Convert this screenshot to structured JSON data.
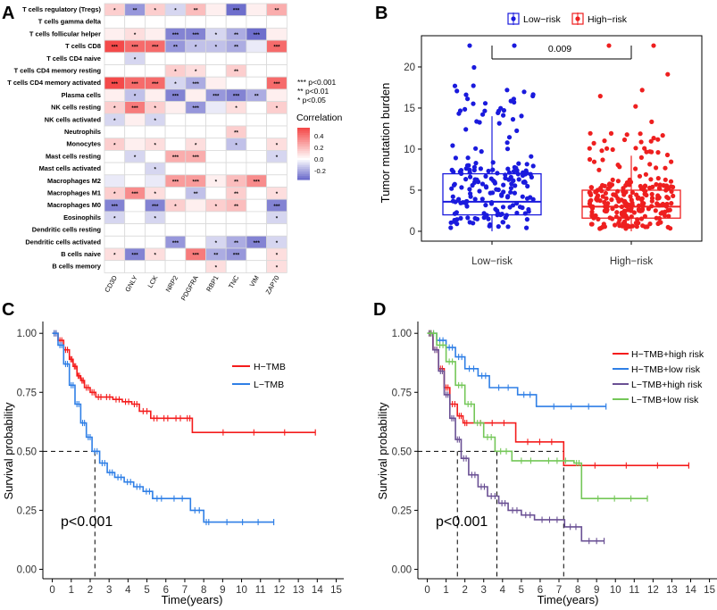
{
  "panel_labels": [
    "A",
    "B",
    "C",
    "D"
  ],
  "colors": {
    "pos": "#f44a4a",
    "neg": "#6e6ecc",
    "lowrisk": "#1a1add",
    "highrisk": "#ee1f1f",
    "htmb": "#f41c1c",
    "ltmb": "#2f7fe6",
    "htmb_high": "#f41c1c",
    "htmb_low": "#2f7fe6",
    "ltmb_high": "#6a5094",
    "ltmb_low": "#74c758"
  },
  "chart_data": [
    {
      "id": "A",
      "type": "heatmap",
      "title": "",
      "rows": [
        "T cells regulatory (Tregs)",
        "T cells gamma delta",
        "T cells follicular helper",
        "T cells CD8",
        "T cells CD4 naive",
        "T cells CD4 memory resting",
        "T cells CD4 memory activated",
        "Plasma cells",
        "NK cells resting",
        "NK cells activated",
        "Neutrophils",
        "Monocytes",
        "Mast cells resting",
        "Mast cells activated",
        "Macrophages M2",
        "Macrophages M1",
        "Macrophages M0",
        "Eosinophils",
        "Dendritic cells resting",
        "Dendritic cells activated",
        "B cells naive",
        "B cells memory"
      ],
      "columns": [
        "CD3D",
        "GNLY",
        "LCK",
        "NRP2",
        "PDGFRA",
        "RBP1",
        "TNC",
        "VIM",
        "ZAP70"
      ],
      "values": [
        [
          0.15,
          -0.25,
          0.15,
          -0.1,
          0.2,
          0.05,
          -0.35,
          0.05,
          0.25
        ],
        [
          0.0,
          0.0,
          0.0,
          0.0,
          0.0,
          0.0,
          0.0,
          0.0,
          0.0
        ],
        [
          0.05,
          0.1,
          0.05,
          -0.3,
          -0.3,
          -0.1,
          -0.2,
          -0.35,
          0.05
        ],
        [
          0.55,
          0.45,
          0.45,
          -0.25,
          -0.15,
          -0.15,
          -0.2,
          -0.05,
          0.45
        ],
        [
          0.0,
          -0.1,
          0.0,
          0.0,
          0.0,
          0.0,
          0.0,
          0.0,
          0.0
        ],
        [
          0.0,
          0.0,
          0.0,
          0.15,
          0.1,
          0.0,
          0.15,
          0.0,
          0.0
        ],
        [
          0.55,
          0.45,
          0.45,
          -0.1,
          -0.2,
          0.05,
          0.0,
          0.0,
          0.45
        ],
        [
          0.05,
          -0.15,
          0.05,
          -0.3,
          0.05,
          -0.25,
          -0.3,
          -0.2,
          0.05
        ],
        [
          0.15,
          0.4,
          0.15,
          0.05,
          -0.25,
          -0.05,
          0.1,
          0.0,
          0.15
        ],
        [
          -0.1,
          0.05,
          -0.1,
          0.0,
          0.0,
          0.0,
          0.0,
          0.0,
          0.0
        ],
        [
          0.0,
          0.0,
          0.0,
          0.0,
          0.0,
          0.0,
          0.15,
          0.0,
          0.0
        ],
        [
          0.15,
          0.05,
          0.1,
          0.0,
          0.1,
          0.0,
          -0.15,
          0.0,
          0.1
        ],
        [
          0.0,
          -0.1,
          0.0,
          0.25,
          0.25,
          0.0,
          0.0,
          0.0,
          -0.1
        ],
        [
          0.0,
          0.0,
          -0.1,
          0.0,
          0.0,
          0.0,
          0.0,
          0.0,
          0.0
        ],
        [
          -0.05,
          0.0,
          -0.05,
          0.3,
          0.3,
          0.05,
          0.2,
          0.35,
          0.0
        ],
        [
          0.15,
          0.35,
          0.1,
          0.0,
          -0.15,
          0.0,
          0.15,
          0.0,
          0.1
        ],
        [
          -0.3,
          0.0,
          -0.3,
          0.15,
          0.05,
          0.15,
          0.2,
          0.0,
          -0.3
        ],
        [
          -0.1,
          0.0,
          -0.1,
          0.0,
          0.0,
          0.0,
          0.0,
          0.0,
          -0.1
        ],
        [
          0.0,
          0.0,
          0.0,
          0.0,
          0.0,
          0.0,
          0.0,
          0.0,
          0.0
        ],
        [
          0.0,
          0.0,
          0.0,
          -0.25,
          0.0,
          -0.1,
          -0.2,
          -0.3,
          -0.1
        ],
        [
          0.1,
          -0.3,
          0.1,
          0.0,
          0.4,
          -0.2,
          -0.25,
          0.0,
          0.1
        ],
        [
          0.0,
          0.0,
          0.0,
          0.0,
          0.0,
          0.1,
          0.0,
          0.0,
          0.1
        ]
      ],
      "stars": [
        [
          "*",
          "**",
          "*",
          "*",
          "**",
          "",
          "***",
          "",
          "**"
        ],
        [
          "",
          "",
          "",
          "",
          "",
          "",
          "",
          "",
          ""
        ],
        [
          "",
          "*",
          "",
          "***",
          "***",
          "*",
          "**",
          "***",
          ""
        ],
        [
          "***",
          "***",
          "***",
          "**",
          "*",
          "*",
          "**",
          "",
          "***"
        ],
        [
          "",
          "*",
          "",
          "",
          "",
          "",
          "",
          "",
          ""
        ],
        [
          "",
          "",
          "",
          "*",
          "*",
          "",
          "**",
          "",
          ""
        ],
        [
          "***",
          "***",
          "***",
          "*",
          "***",
          "",
          "",
          "",
          "***"
        ],
        [
          "",
          "*",
          "",
          "***",
          "",
          "***",
          "***",
          "**",
          ""
        ],
        [
          "*",
          "***",
          "*",
          "",
          "***",
          "",
          "*",
          "",
          "*"
        ],
        [
          "*",
          "",
          "*",
          "",
          "",
          "",
          "",
          "",
          ""
        ],
        [
          "",
          "",
          "",
          "",
          "",
          "",
          "**",
          "",
          ""
        ],
        [
          "*",
          "",
          "*",
          "",
          "*",
          "",
          "*",
          "",
          "*"
        ],
        [
          "",
          "*",
          "",
          "***",
          "***",
          "",
          "",
          "",
          "*"
        ],
        [
          "",
          "",
          "*",
          "",
          "",
          "",
          "",
          "",
          ""
        ],
        [
          "",
          "",
          "",
          "***",
          "***",
          "*",
          "**",
          "***",
          ""
        ],
        [
          "*",
          "***",
          "*",
          "",
          "**",
          "",
          "**",
          "",
          "*"
        ],
        [
          "***",
          "",
          "***",
          "*",
          "",
          "*",
          "**",
          "",
          "***"
        ],
        [
          "*",
          "",
          "*",
          "",
          "",
          "",
          "",
          "",
          "*"
        ],
        [
          "",
          "",
          "",
          "",
          "",
          "",
          "",
          "",
          ""
        ],
        [
          "",
          "",
          "",
          "***",
          "",
          "*",
          "**",
          "***",
          "*"
        ],
        [
          "*",
          "***",
          "*",
          "",
          "***",
          "**",
          "***",
          "",
          "*"
        ],
        [
          "",
          "",
          "",
          "",
          "",
          "*",
          "",
          "",
          "*"
        ]
      ],
      "significance_legend": [
        "*** p<0.001",
        "** p<0.01",
        "* p<0.05"
      ],
      "colorbar": {
        "title": "Correlation",
        "ticks": [
          "0.4",
          "0.2",
          "0.0",
          "-0.2"
        ],
        "range": [
          -0.35,
          0.55
        ]
      }
    },
    {
      "id": "B",
      "type": "box+scatter",
      "categories": [
        "Low−risk",
        "High−risk"
      ],
      "legend": [
        "Low−risk",
        "High−risk"
      ],
      "ylabel": "Tumor mutation burden",
      "xlabel": "",
      "ylim": [
        0,
        23
      ],
      "yticks": [
        0,
        5,
        10,
        15,
        20
      ],
      "pvalue": "0.009",
      "boxes": [
        {
          "name": "Low−risk",
          "min": 0,
          "q1": 2.0,
          "median": 3.6,
          "q3": 7.0,
          "whisker_high": 14.0,
          "max_outlier": 22.6,
          "n_points": 190
        },
        {
          "name": "High−risk",
          "min": 0,
          "q1": 1.6,
          "median": 3.0,
          "q3": 5.0,
          "whisker_high": 9.2,
          "max_outlier": 22.6,
          "n_points": 250
        }
      ]
    },
    {
      "id": "C",
      "type": "line",
      "subtype": "kaplan-meier",
      "xlabel": "Time(years)",
      "ylabel": "Survival probability",
      "xlim": [
        0,
        15
      ],
      "ylim": [
        0,
        1
      ],
      "xticks": [
        "0",
        "1",
        "2",
        "3",
        "4",
        "5",
        "6",
        "7",
        "8",
        "9",
        "10",
        "11",
        "12",
        "13",
        "14",
        "15"
      ],
      "yticks": [
        "0.00",
        "0.25",
        "0.50",
        "0.75",
        "1.00"
      ],
      "pvalue": "p<0.001",
      "median_lines": [
        2.25
      ],
      "series": [
        {
          "name": "H−TMB",
          "x": [
            0,
            0.3,
            0.6,
            0.9,
            1.1,
            1.3,
            1.5,
            1.7,
            2.0,
            2.3,
            2.7,
            3.2,
            3.7,
            4.2,
            4.6,
            5.2,
            5.7,
            6.3,
            7.0,
            7.4,
            13.9
          ],
          "y": [
            1.0,
            0.97,
            0.93,
            0.89,
            0.86,
            0.82,
            0.8,
            0.77,
            0.75,
            0.73,
            0.73,
            0.72,
            0.71,
            0.7,
            0.67,
            0.64,
            0.64,
            0.64,
            0.64,
            0.58,
            0.58
          ]
        },
        {
          "name": "L−TMB",
          "x": [
            0,
            0.3,
            0.6,
            0.9,
            1.2,
            1.5,
            1.8,
            2.1,
            2.5,
            2.9,
            3.3,
            3.8,
            4.3,
            4.8,
            5.3,
            6.0,
            7.3,
            8.0,
            8.4,
            11.7
          ],
          "y": [
            1.0,
            0.95,
            0.87,
            0.78,
            0.7,
            0.62,
            0.56,
            0.5,
            0.45,
            0.41,
            0.39,
            0.37,
            0.35,
            0.33,
            0.3,
            0.3,
            0.25,
            0.2,
            0.2,
            0.2
          ]
        }
      ]
    },
    {
      "id": "D",
      "type": "line",
      "subtype": "kaplan-meier",
      "xlabel": "Time(years)",
      "ylabel": "Survival probability",
      "xlim": [
        0,
        15
      ],
      "ylim": [
        0,
        1
      ],
      "xticks": [
        "0",
        "1",
        "2",
        "3",
        "4",
        "5",
        "6",
        "7",
        "8",
        "9",
        "10",
        "11",
        "12",
        "13",
        "14",
        "15"
      ],
      "yticks": [
        "0.00",
        "0.25",
        "0.50",
        "0.75",
        "1.00"
      ],
      "pvalue": "p<0.001",
      "median_lines": [
        1.6,
        3.7,
        7.25
      ],
      "series": [
        {
          "name": "H−TMB+high risk",
          "x": [
            0,
            0.3,
            0.6,
            0.9,
            1.2,
            1.6,
            1.9,
            2.2,
            4.7,
            7.25,
            13.9
          ],
          "y": [
            1.0,
            0.93,
            0.85,
            0.77,
            0.7,
            0.65,
            0.62,
            0.62,
            0.54,
            0.44,
            0.44
          ]
        },
        {
          "name": "H−TMB+low risk",
          "x": [
            0,
            0.5,
            1.0,
            1.5,
            2.0,
            2.7,
            3.3,
            4.8,
            5.8,
            9.5
          ],
          "y": [
            1.0,
            0.97,
            0.94,
            0.9,
            0.85,
            0.82,
            0.77,
            0.74,
            0.69,
            0.69
          ]
        },
        {
          "name": "L−TMB+high risk",
          "x": [
            0,
            0.3,
            0.6,
            0.9,
            1.2,
            1.5,
            1.8,
            2.2,
            2.7,
            3.2,
            3.8,
            4.3,
            5.0,
            5.7,
            7.3,
            8.2,
            9.4
          ],
          "y": [
            1.0,
            0.93,
            0.84,
            0.74,
            0.64,
            0.55,
            0.47,
            0.4,
            0.35,
            0.31,
            0.28,
            0.25,
            0.23,
            0.21,
            0.18,
            0.12,
            0.12
          ]
        },
        {
          "name": "L−TMB+low risk",
          "x": [
            0,
            0.5,
            1.0,
            1.5,
            2.0,
            2.5,
            3.0,
            3.6,
            4.5,
            6.0,
            7.8,
            8.2,
            11.7
          ],
          "y": [
            1.0,
            0.95,
            0.88,
            0.78,
            0.7,
            0.62,
            0.56,
            0.5,
            0.46,
            0.46,
            0.45,
            0.3,
            0.3
          ]
        }
      ]
    }
  ]
}
